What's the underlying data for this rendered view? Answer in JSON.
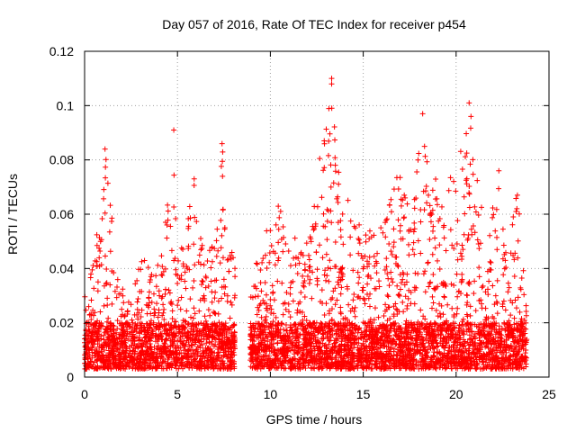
{
  "chart_data": {
    "type": "scatter",
    "title": "Day 057 of 2016, Rate Of TEC Index for receiver p454",
    "xlabel": "GPS time / hours",
    "ylabel": "ROTI / TECUs",
    "xlim": [
      0,
      25
    ],
    "ylim": [
      0,
      0.12
    ],
    "x_ticks": [
      0,
      5,
      10,
      15,
      20,
      25
    ],
    "x_tick_labels": [
      "0",
      "5",
      "10",
      "15",
      "20",
      "25"
    ],
    "y_ticks": [
      0,
      0.02,
      0.04,
      0.06,
      0.08,
      0.1,
      0.12
    ],
    "y_tick_labels": [
      "0",
      "0.02",
      "0.04",
      "0.06",
      "0.08",
      "0.1",
      "0.12"
    ],
    "grid": true,
    "marker": "+",
    "series_color": "#ff0000",
    "data_gap": [
      8.1,
      8.9
    ],
    "time_range": [
      0,
      23.8
    ],
    "baseline_band": [
      0.003,
      0.02
    ],
    "envelope": [
      {
        "x": 0.0,
        "ymax": 0.03
      },
      {
        "x": 0.5,
        "ymax": 0.045
      },
      {
        "x": 0.8,
        "ymax": 0.06
      },
      {
        "x": 1.1,
        "ymax": 0.084
      },
      {
        "x": 1.4,
        "ymax": 0.067
      },
      {
        "x": 2.0,
        "ymax": 0.035
      },
      {
        "x": 2.5,
        "ymax": 0.032
      },
      {
        "x": 3.1,
        "ymax": 0.048
      },
      {
        "x": 3.6,
        "ymax": 0.04
      },
      {
        "x": 4.2,
        "ymax": 0.047
      },
      {
        "x": 4.8,
        "ymax": 0.091
      },
      {
        "x": 5.3,
        "ymax": 0.05
      },
      {
        "x": 5.9,
        "ymax": 0.073
      },
      {
        "x": 6.4,
        "ymax": 0.045
      },
      {
        "x": 7.0,
        "ymax": 0.05
      },
      {
        "x": 7.4,
        "ymax": 0.087
      },
      {
        "x": 7.8,
        "ymax": 0.055
      },
      {
        "x": 8.1,
        "ymax": 0.04
      },
      {
        "x": 8.9,
        "ymax": 0.035
      },
      {
        "x": 9.6,
        "ymax": 0.05
      },
      {
        "x": 10.3,
        "ymax": 0.065
      },
      {
        "x": 11.0,
        "ymax": 0.055
      },
      {
        "x": 11.8,
        "ymax": 0.05
      },
      {
        "x": 12.4,
        "ymax": 0.075
      },
      {
        "x": 12.9,
        "ymax": 0.087
      },
      {
        "x": 13.3,
        "ymax": 0.11
      },
      {
        "x": 13.8,
        "ymax": 0.075
      },
      {
        "x": 14.4,
        "ymax": 0.06
      },
      {
        "x": 15.2,
        "ymax": 0.055
      },
      {
        "x": 16.0,
        "ymax": 0.055
      },
      {
        "x": 16.7,
        "ymax": 0.08
      },
      {
        "x": 17.4,
        "ymax": 0.065
      },
      {
        "x": 18.2,
        "ymax": 0.097
      },
      {
        "x": 18.8,
        "ymax": 0.075
      },
      {
        "x": 19.4,
        "ymax": 0.07
      },
      {
        "x": 20.1,
        "ymax": 0.08
      },
      {
        "x": 20.7,
        "ymax": 0.101
      },
      {
        "x": 21.3,
        "ymax": 0.065
      },
      {
        "x": 21.9,
        "ymax": 0.06
      },
      {
        "x": 22.3,
        "ymax": 0.077
      },
      {
        "x": 22.8,
        "ymax": 0.05
      },
      {
        "x": 23.3,
        "ymax": 0.069
      },
      {
        "x": 23.8,
        "ymax": 0.03
      }
    ],
    "notable_points": [
      {
        "x": 1.1,
        "y": 0.084
      },
      {
        "x": 4.8,
        "y": 0.091
      },
      {
        "x": 5.9,
        "y": 0.073
      },
      {
        "x": 7.4,
        "y": 0.086
      },
      {
        "x": 12.9,
        "y": 0.087
      },
      {
        "x": 13.3,
        "y": 0.11
      },
      {
        "x": 13.3,
        "y": 0.108
      },
      {
        "x": 18.2,
        "y": 0.097
      },
      {
        "x": 18.3,
        "y": 0.085
      },
      {
        "x": 20.7,
        "y": 0.101
      },
      {
        "x": 20.8,
        "y": 0.096
      },
      {
        "x": 22.3,
        "y": 0.076
      },
      {
        "x": 23.3,
        "y": 0.067
      }
    ]
  }
}
